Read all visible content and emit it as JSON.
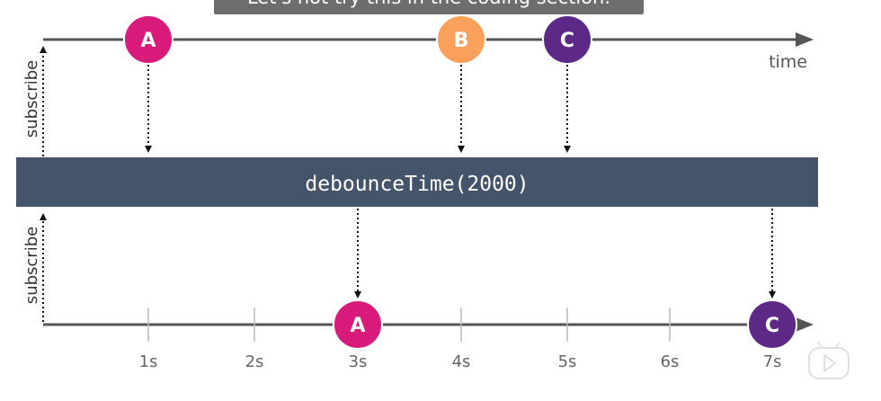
{
  "caption": "Let's not try this in the coding section.",
  "operator": {
    "label": "debounceTime(2000)",
    "color": "#44546a"
  },
  "input_stream": {
    "axis_label": "time",
    "subscribe_label": "subscribe",
    "marbles": [
      {
        "label": "A",
        "color": "#d81b7a"
      },
      {
        "label": "B",
        "color": "#f9a15b"
      },
      {
        "label": "C",
        "color": "#5c2a86"
      }
    ]
  },
  "output_stream": {
    "subscribe_label": "subscribe",
    "ticks": [
      "1s",
      "2s",
      "3s",
      "4s",
      "5s",
      "6s",
      "7s"
    ],
    "marbles": [
      {
        "label": "A",
        "color": "#d81b7a",
        "time": "3s"
      },
      {
        "label": "C",
        "color": "#5c2a86",
        "time": "7s"
      }
    ]
  },
  "player": {
    "icon": "play-icon"
  }
}
